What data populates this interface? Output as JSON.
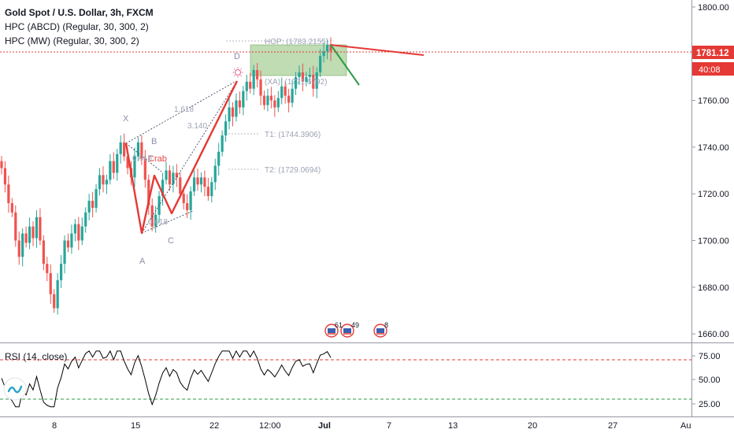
{
  "header": {
    "title": "Gold Spot / U.S. Dollar, 3h, FXCM",
    "indicators": [
      "HPC (ABCD) (Regular, 30, 300, 2)",
      "HPC (MW) (Regular, 30, 300, 2)"
    ]
  },
  "price_axis": {
    "labels": [
      "1800.00",
      "1780.00",
      "1760.00",
      "1740.00",
      "1720.00",
      "1700.00",
      "1680.00",
      "1660.00"
    ],
    "current_price": "1781.12",
    "countdown": "40:08"
  },
  "rsi_panel": {
    "label": "RSI (14, close)",
    "labels": [
      "75.00",
      "50.00",
      "25.00"
    ]
  },
  "time_axis": {
    "labels": [
      "8",
      "15",
      "22",
      "12:00",
      "Jul",
      "7",
      "13",
      "20",
      "27",
      "Au"
    ]
  },
  "pattern": {
    "points": [
      "X",
      "A",
      "B",
      "C",
      "D"
    ],
    "name": "Crab",
    "ratios": [
      "0.618",
      "0.618",
      "1.618",
      "3.140"
    ],
    "levels": [
      "HOP: (1783.2155)",
      "(XA): (1771.6792)",
      "T1: (1744.3906)",
      "T2: (1729.0694)"
    ]
  },
  "events": [
    "61",
    "49",
    "8"
  ],
  "colors": {
    "up": "#26a69a",
    "down": "#ef5350",
    "price_line": "#e53935",
    "pattern": "#e53935",
    "target_zone": "#8bbf75",
    "projection": "#2e9b44",
    "dotted": "#404a6a"
  },
  "chart_data": {
    "type": "candlestick",
    "title": "Gold Spot / U.S. Dollar, 3h, FXCM",
    "y_range": [
      1657,
      1803
    ],
    "y_ticks": [
      1800,
      1780,
      1760,
      1740,
      1720,
      1700,
      1680,
      1660
    ],
    "last_price": 1781.12,
    "price_path_approx": [
      [
        1734,
        1731
      ],
      [
        1731,
        1724
      ],
      [
        1724,
        1716
      ],
      [
        1716,
        1712
      ],
      [
        1712,
        1700
      ],
      [
        1700,
        1693
      ],
      [
        1693,
        1703
      ],
      [
        1703,
        1699
      ],
      [
        1699,
        1706
      ],
      [
        1706,
        1701
      ],
      [
        1701,
        1710
      ],
      [
        1710,
        1700
      ],
      [
        1700,
        1690
      ],
      [
        1690,
        1686
      ],
      [
        1686,
        1677
      ],
      [
        1677,
        1671
      ],
      [
        1671,
        1683
      ],
      [
        1683,
        1690
      ],
      [
        1690,
        1700
      ],
      [
        1700,
        1697
      ],
      [
        1697,
        1703
      ],
      [
        1703,
        1707
      ],
      [
        1707,
        1700
      ],
      [
        1700,
        1706
      ],
      [
        1706,
        1712
      ],
      [
        1712,
        1717
      ],
      [
        1717,
        1714
      ],
      [
        1714,
        1722
      ],
      [
        1722,
        1728
      ],
      [
        1728,
        1724
      ],
      [
        1724,
        1726
      ],
      [
        1726,
        1734
      ],
      [
        1734,
        1729
      ],
      [
        1729,
        1737
      ],
      [
        1737,
        1742
      ],
      [
        1742,
        1736
      ],
      [
        1736,
        1731
      ],
      [
        1731,
        1727
      ],
      [
        1727,
        1736
      ],
      [
        1736,
        1742
      ],
      [
        1742,
        1735
      ],
      [
        1735,
        1726
      ],
      [
        1726,
        1715
      ],
      [
        1715,
        1706
      ],
      [
        1706,
        1711
      ],
      [
        1711,
        1719
      ],
      [
        1719,
        1726
      ],
      [
        1726,
        1730
      ],
      [
        1730,
        1724
      ],
      [
        1724,
        1729
      ],
      [
        1729,
        1727
      ],
      [
        1727,
        1720
      ],
      [
        1720,
        1716
      ],
      [
        1716,
        1713
      ],
      [
        1713,
        1721
      ],
      [
        1721,
        1727
      ],
      [
        1727,
        1724
      ],
      [
        1724,
        1727
      ],
      [
        1727,
        1723
      ],
      [
        1723,
        1719
      ],
      [
        1719,
        1725
      ],
      [
        1725,
        1732
      ],
      [
        1732,
        1738
      ],
      [
        1738,
        1745
      ],
      [
        1745,
        1751
      ],
      [
        1751,
        1757
      ],
      [
        1757,
        1753
      ],
      [
        1753,
        1760
      ],
      [
        1760,
        1757
      ],
      [
        1757,
        1764
      ],
      [
        1764,
        1768
      ],
      [
        1768,
        1765
      ],
      [
        1765,
        1773
      ],
      [
        1773,
        1769
      ],
      [
        1769,
        1762
      ],
      [
        1762,
        1758
      ],
      [
        1758,
        1762
      ],
      [
        1762,
        1760
      ],
      [
        1760,
        1757
      ],
      [
        1757,
        1761
      ],
      [
        1761,
        1766
      ],
      [
        1766,
        1762
      ],
      [
        1762,
        1759
      ],
      [
        1759,
        1765
      ],
      [
        1765,
        1770
      ],
      [
        1770,
        1772
      ],
      [
        1772,
        1768
      ],
      [
        1768,
        1770
      ],
      [
        1770,
        1771
      ],
      [
        1771,
        1765
      ],
      [
        1765,
        1772
      ],
      [
        1772,
        1779
      ],
      [
        1779,
        1781
      ],
      [
        1781,
        1784
      ],
      [
        1784,
        1781
      ]
    ],
    "rsi": {
      "y_ticks": [
        75,
        50,
        25
      ],
      "overbought": 70,
      "oversold": 30
    }
  }
}
